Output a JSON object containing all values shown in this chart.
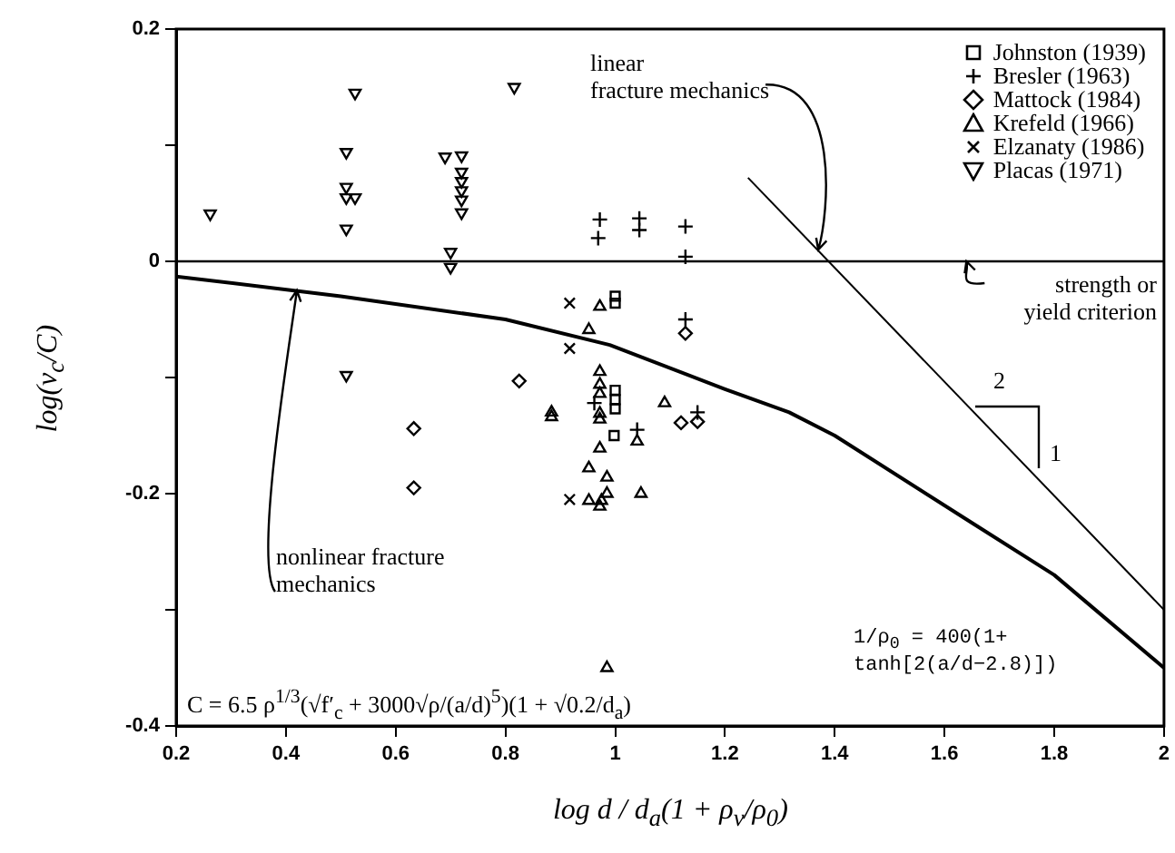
{
  "chart_data": {
    "type": "scatter",
    "xlabel": "log d / d$_{a}$(1 + ρ$_{v}$/ρ$_{0}$)",
    "ylabel": "log(v$_{c}$/C)",
    "xlim": [
      0.2,
      2
    ],
    "xticks": [
      0.2,
      0.4,
      0.6,
      0.8,
      1,
      1.2,
      1.4,
      1.6,
      1.8,
      2
    ],
    "ylim": [
      -0.4,
      0.2
    ],
    "yticks": [
      -0.4,
      {
        "value": -0.3,
        "label": null
      },
      -0.2,
      {
        "value": -0.1,
        "label": null
      },
      0,
      {
        "value": 0.1,
        "label": null
      },
      0.2
    ],
    "grid": false,
    "legend": "top right",
    "ref_lines": [
      {
        "axis": "y",
        "value": 0,
        "color": "#000000"
      }
    ],
    "annotations": [
      {
        "text": "linear\nfracture mechanics",
        "x": 1.37,
        "y": 0.01
      },
      {
        "text": "strength or\nyield criterion",
        "x": 1.64,
        "y": 0
      },
      {
        "text": "nonlinear fracture\nmechanics",
        "x": 0.42,
        "y": -0.025
      },
      "2",
      "1",
      "C = 6.5 ρ$^{1/3}$(√f′$_{c}$ + 3000√ρ/(a/d)$^{5}$)(1 + √0.2/d$_{a}$)",
      "1/ρ$_{0}$ = 400(1+\ntanh[2(a/d−2.8)])"
    ],
    "series": [
      {
        "name": "Johnston (1939)",
        "color": "#000000",
        "marker": "square",
        "x": [
          1.0,
          1.0,
          1.0,
          1.0,
          1.0,
          0.998
        ],
        "values": [
          -0.03,
          -0.036,
          -0.111,
          -0.119,
          -0.127,
          -0.15
        ]
      },
      {
        "name": "Bresler (1963)",
        "color": "#000000",
        "marker": "plus",
        "x": [
          0.972,
          0.969,
          1.044,
          1.044,
          1.128,
          1.128,
          1.128,
          1.15,
          1.04,
          0.962
        ],
        "values": [
          0.036,
          0.02,
          0.037,
          0.027,
          0.03,
          0.004,
          -0.05,
          -0.13,
          -0.145,
          -0.122
        ]
      },
      {
        "name": "Mattock (1984)",
        "color": "#000000",
        "marker": "diamond",
        "x": [
          0.633,
          0.633,
          0.825,
          1.128,
          1.12,
          1.15
        ],
        "values": [
          -0.144,
          -0.195,
          -0.103,
          -0.062,
          -0.139,
          -0.138
        ]
      },
      {
        "name": "Krefeld (1966)",
        "color": "#000000",
        "marker": "triangle",
        "x": [
          0.972,
          0.952,
          0.884,
          0.884,
          0.972,
          0.972,
          0.972,
          0.972,
          0.972,
          0.972,
          0.952,
          0.985,
          0.952,
          0.975,
          0.985,
          0.972,
          1.047,
          1.04,
          1.09,
          0.985
        ],
        "values": [
          -0.039,
          -0.059,
          -0.13,
          -0.134,
          -0.095,
          -0.106,
          -0.114,
          -0.131,
          -0.136,
          -0.161,
          -0.178,
          -0.186,
          -0.206,
          -0.206,
          -0.2,
          -0.211,
          -0.2,
          -0.155,
          -0.122,
          -0.35
        ]
      },
      {
        "name": "Elzanaty (1986)",
        "color": "#000000",
        "marker": "cross",
        "x": [
          0.917,
          0.917,
          0.917
        ],
        "values": [
          -0.036,
          -0.075,
          -0.205
        ]
      },
      {
        "name": "Placas (1971)",
        "color": "#000000",
        "marker": "triangle_down",
        "x": [
          0.262,
          0.526,
          0.51,
          0.51,
          0.51,
          0.526,
          0.51,
          0.816,
          0.69,
          0.72,
          0.72,
          0.72,
          0.72,
          0.72,
          0.72,
          0.7,
          0.7,
          0.51
        ],
        "values": [
          0.041,
          0.145,
          0.094,
          0.064,
          0.055,
          0.055,
          0.028,
          0.15,
          0.09,
          0.091,
          0.077,
          0.069,
          0.061,
          0.053,
          0.042,
          0.008,
          -0.005,
          -0.098
        ]
      },
      {
        "type": "line",
        "color": "#000000",
        "marker": "none",
        "x": [
          0.2,
          0.5,
          0.8,
          0.99,
          1.2,
          1.317,
          1.4,
          1.643,
          1.8,
          2.0
        ],
        "values": [
          -0.013,
          -0.03,
          -0.05,
          -0.072,
          -0.11,
          -0.13,
          -0.15,
          -0.223,
          -0.27,
          -0.35
        ]
      },
      {
        "type": "line",
        "color": "#000000",
        "marker": "none",
        "x": [
          1.242,
          2.0
        ],
        "values": [
          0.072,
          -0.3
        ]
      }
    ]
  }
}
